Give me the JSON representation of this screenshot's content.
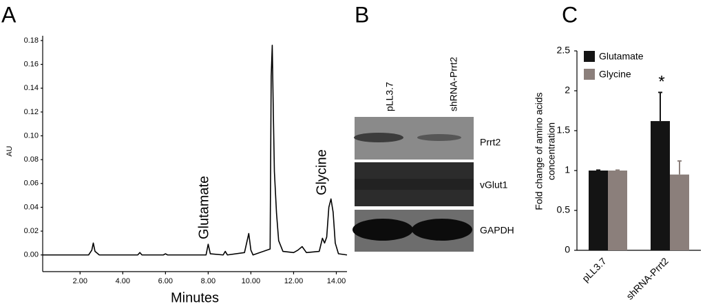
{
  "panel_labels": [
    "A",
    "B",
    "C"
  ],
  "chart_data": [
    {
      "type": "line",
      "x_label": "Minutes",
      "y_label": "AU",
      "x": [
        0.25,
        2.4,
        2.55,
        2.62,
        2.7,
        2.9,
        4.7,
        4.8,
        4.9,
        5.9,
        6.0,
        6.1,
        7.9,
        8.0,
        8.1,
        8.7,
        8.8,
        8.9,
        9.7,
        9.9,
        10.0,
        10.1,
        10.9,
        10.95,
        11.0,
        11.05,
        11.1,
        11.2,
        11.3,
        11.5,
        12.0,
        12.2,
        12.4,
        12.6,
        13.2,
        13.35,
        13.45,
        13.55,
        13.65,
        13.75,
        13.85,
        13.95,
        14.1,
        14.5
      ],
      "series": [
        {
          "color": "#000000",
          "values": [
            0.0,
            0.0,
            0.004,
            0.01,
            0.003,
            0.0,
            0.0,
            0.002,
            0.0,
            0.0,
            0.001,
            0.0,
            0.0,
            0.009,
            0.001,
            0.0,
            0.003,
            0.0,
            0.002,
            0.018,
            0.004,
            0.0,
            0.005,
            0.15,
            0.176,
            0.12,
            0.07,
            0.035,
            0.012,
            0.003,
            0.002,
            0.004,
            0.007,
            0.002,
            0.003,
            0.014,
            0.01,
            0.015,
            0.04,
            0.047,
            0.036,
            0.01,
            0.001,
            0.0
          ]
        }
      ],
      "xlim": [
        0.25,
        14.5
      ],
      "ylim": [
        -0.014,
        0.184
      ],
      "xticks": [
        {
          "value": 2,
          "label": "2.00"
        },
        {
          "value": 4,
          "label": "4.00"
        },
        {
          "value": 6,
          "label": "6.00"
        },
        {
          "value": 8,
          "label": "8.00"
        },
        {
          "value": 10,
          "label": "10.00"
        },
        {
          "value": 12,
          "label": "12.00"
        },
        {
          "value": 14,
          "label": "14.00"
        }
      ],
      "yticks": [
        {
          "value": 0,
          "label": "0.00"
        },
        {
          "value": 0.02,
          "label": "0.02"
        },
        {
          "value": 0.04,
          "label": "0.04"
        },
        {
          "value": 0.06,
          "label": "0.06"
        },
        {
          "value": 0.08,
          "label": "0.08"
        },
        {
          "value": 0.1,
          "label": "0.10"
        },
        {
          "value": 0.12,
          "label": "0.12"
        },
        {
          "value": 0.14,
          "label": "0.14"
        },
        {
          "value": 0.16,
          "label": "0.16"
        },
        {
          "value": 0.18,
          "label": "0.18"
        }
      ],
      "annotations": [
        "Glutamate",
        "Glycine"
      ]
    },
    {
      "type": "bar",
      "categories": [
        "pLL3.7",
        "shRNA-Prrt2"
      ],
      "y_label": [
        "Fold change of amino acids",
        "concentration"
      ],
      "series": [
        {
          "name": "Glutamate",
          "color": "#141414",
          "values": [
            1,
            1.62
          ],
          "errors": [
            0.005,
            0.36
          ]
        },
        {
          "name": "Glycine",
          "color": "#8b7f7b",
          "values": [
            1,
            0.95
          ],
          "errors": [
            0.005,
            0.17
          ]
        }
      ],
      "ylim": [
        0,
        2.5
      ],
      "yticks": [
        0,
        0.5,
        1,
        1.5,
        2,
        2.5
      ],
      "annotations": [
        "*"
      ],
      "legend": "upper left"
    }
  ],
  "blot": {
    "lanes": [
      "pLL3.7",
      "shRNA-Prrt2"
    ],
    "rows": [
      "Prrt2",
      "vGlut1",
      "GAPDH"
    ]
  }
}
